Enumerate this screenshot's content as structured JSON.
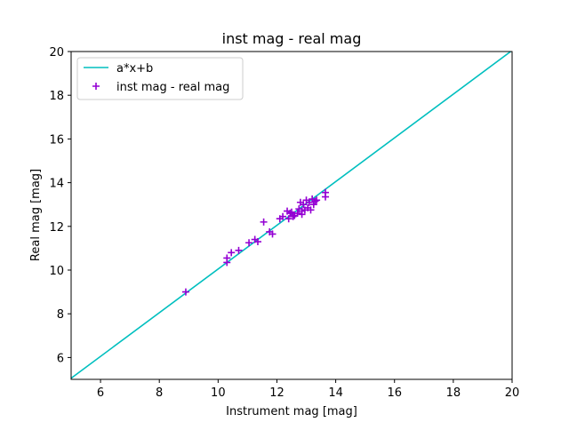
{
  "chart_data": {
    "type": "scatter",
    "title": "inst mag - real mag",
    "xlabel": "Instrument mag [mag]",
    "ylabel": "Real mag [mag]",
    "xlim": [
      5,
      20
    ],
    "ylim": [
      5,
      20
    ],
    "xticks": [
      6,
      8,
      10,
      12,
      14,
      16,
      18,
      20
    ],
    "yticks": [
      6,
      8,
      10,
      12,
      14,
      16,
      18,
      20
    ],
    "grid": false,
    "legend_position": "upper-left",
    "fit_line": {
      "name": "a*x+b",
      "color": "#00bfbf",
      "slope": 1.0,
      "intercept": 0.05
    },
    "series": [
      {
        "name": "inst mag - real mag",
        "color": "#9400d3",
        "marker": "plus",
        "x": [
          8.9,
          10.3,
          10.3,
          10.45,
          10.7,
          11.05,
          11.25,
          11.35,
          11.55,
          11.75,
          11.85,
          12.1,
          12.2,
          12.35,
          12.4,
          12.45,
          12.55,
          12.6,
          12.7,
          12.75,
          12.8,
          12.85,
          12.9,
          12.95,
          13.0,
          13.05,
          13.1,
          13.15,
          13.2,
          13.25,
          13.3,
          13.35,
          13.65,
          13.65,
          12.85,
          12.5
        ],
        "y": [
          9.0,
          10.35,
          10.55,
          10.8,
          10.9,
          11.25,
          11.4,
          11.3,
          12.2,
          11.75,
          11.65,
          12.35,
          12.45,
          12.7,
          12.35,
          12.6,
          12.45,
          12.5,
          12.6,
          12.8,
          13.1,
          12.7,
          13.0,
          12.75,
          13.2,
          12.85,
          13.1,
          12.75,
          13.25,
          13.0,
          13.15,
          13.2,
          13.35,
          13.55,
          12.55,
          12.65
        ]
      }
    ]
  }
}
